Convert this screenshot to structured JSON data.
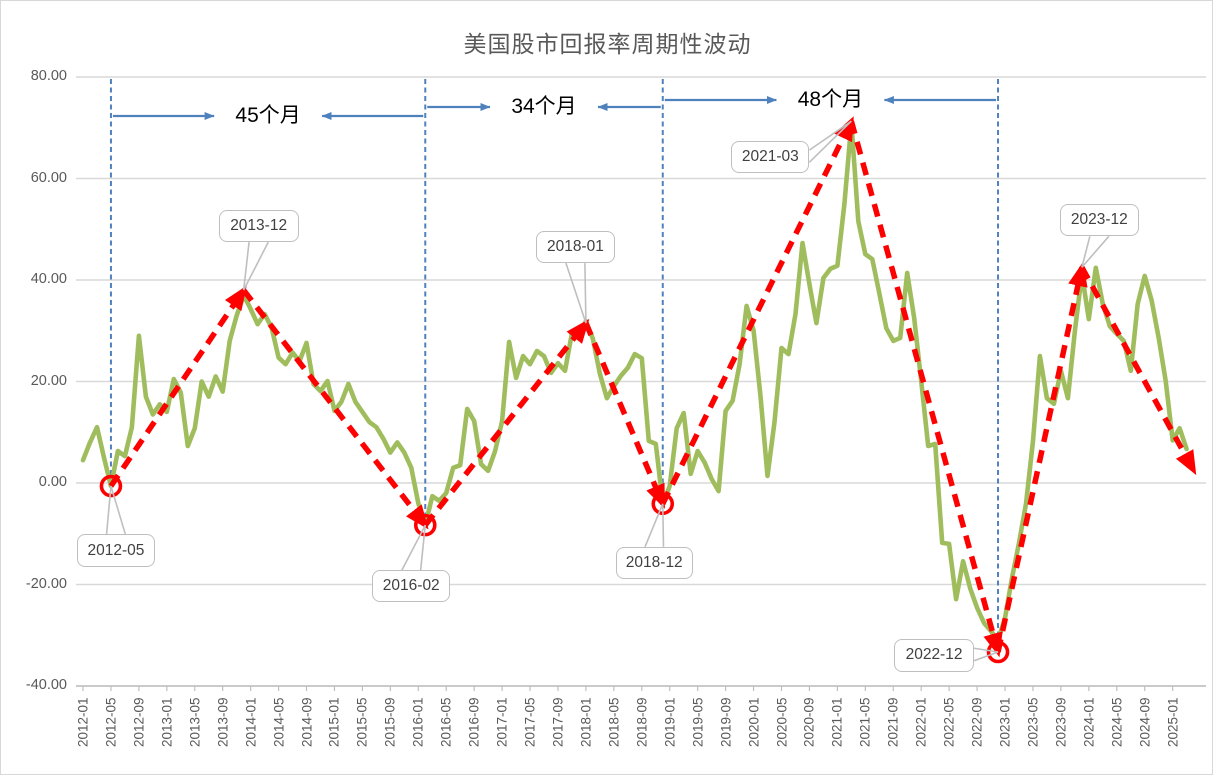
{
  "title": "美国股市回报率周期性波动",
  "axes": {
    "y_ticks": [
      "80.00",
      "60.00",
      "40.00",
      "20.00",
      "0.00",
      "-20.00",
      "-40.00"
    ],
    "y_min": -40,
    "y_max": 80,
    "y_step": 20,
    "x_tick_labels": [
      "2012-01",
      "2012-05",
      "2012-09",
      "2013-01",
      "2013-05",
      "2013-09",
      "2014-01",
      "2014-05",
      "2014-09",
      "2015-01",
      "2015-05",
      "2015-09",
      "2016-01",
      "2016-05",
      "2016-09",
      "2017-01",
      "2017-05",
      "2017-09",
      "2018-01",
      "2018-05",
      "2018-09",
      "2019-01",
      "2019-05",
      "2019-09",
      "2020-01",
      "2020-05",
      "2020-09",
      "2021-01",
      "2021-05",
      "2021-09",
      "2022-01",
      "2022-05",
      "2022-09",
      "2023-01",
      "2023-05",
      "2023-09",
      "2024-01",
      "2024-05",
      "2024-09",
      "2025-01"
    ],
    "x_tick_step_months": 4
  },
  "chart_data": {
    "type": "line",
    "title": "美国股市回报率周期性波动",
    "xlabel": "",
    "ylabel": "",
    "ylim": [
      -40,
      80
    ],
    "grid": "horizontal",
    "frequency": "monthly",
    "start_month": "2012-01",
    "end_month": "2025-03",
    "values": [
      4.5,
      8.0,
      11.0,
      5.0,
      -0.6,
      6.3,
      5.3,
      11.0,
      29.0,
      17.0,
      13.5,
      15.5,
      14.0,
      20.5,
      17.8,
      7.3,
      10.8,
      20.0,
      17.0,
      21.0,
      18.0,
      28.0,
      33.0,
      37.0,
      34.3,
      31.3,
      33.3,
      30.6,
      24.7,
      23.4,
      25.7,
      24.0,
      27.6,
      19.5,
      18.1,
      20.1,
      14.2,
      16.0,
      19.5,
      16.0,
      14.0,
      12.0,
      11.0,
      8.7,
      6.0,
      8.0,
      6.0,
      3.0,
      -4.0,
      -8.3,
      -2.6,
      -3.5,
      -2.0,
      3.0,
      3.5,
      14.6,
      12.2,
      3.7,
      2.4,
      6.3,
      12.2,
      27.8,
      20.7,
      25.0,
      23.4,
      26.0,
      25.0,
      21.7,
      23.6,
      22.1,
      29.6,
      28.6,
      31.9,
      28.4,
      21.5,
      16.7,
      19.1,
      21.1,
      22.7,
      25.4,
      24.6,
      8.3,
      7.7,
      -4.1,
      -0.6,
      10.8,
      13.8,
      1.8,
      6.3,
      4.0,
      0.8,
      -1.6,
      14.2,
      16.2,
      23.4,
      34.9,
      30.0,
      17.1,
      1.4,
      12.0,
      26.6,
      25.4,
      33.3,
      47.3,
      39.2,
      31.5,
      40.4,
      42.2,
      42.8,
      55.0,
      71.0,
      51.6,
      45.1,
      44.1,
      37.4,
      30.5,
      28.0,
      28.6,
      41.4,
      32.5,
      20.1,
      7.3,
      7.7,
      -11.8,
      -12.0,
      -22.9,
      -15.4,
      -20.7,
      -24.6,
      -27.6,
      -29.2,
      -31.0,
      -26.6,
      -18.7,
      -11.8,
      -4.1,
      8.3,
      25.0,
      16.7,
      15.6,
      22.1,
      16.7,
      30.0,
      41.2,
      32.3,
      42.4,
      35.3,
      30.9,
      29.4,
      28.0,
      22.1,
      35.3,
      40.8,
      35.9,
      28.6,
      20.1,
      8.4,
      10.8,
      6.7
    ]
  },
  "trend": {
    "points": [
      {
        "date": "2012-05",
        "value": -0.6
      },
      {
        "date": "2013-12",
        "value": 38.0
      },
      {
        "date": "2016-02",
        "value": -8.3
      },
      {
        "date": "2018-01",
        "value": 31.5
      },
      {
        "date": "2018-12",
        "value": -4.1
      },
      {
        "date": "2021-03",
        "value": 71.3
      },
      {
        "date": "2022-12",
        "value": -33.3
      },
      {
        "date": "2023-12",
        "value": 42.5
      },
      {
        "date": "2025-04",
        "value": 2.5
      }
    ],
    "circled_troughs": [
      "2012-05",
      "2016-02",
      "2018-12",
      "2022-12"
    ]
  },
  "cycle_spans": [
    {
      "label": "45个月",
      "from": "2012-05",
      "to": "2016-02"
    },
    {
      "label": "34个月",
      "from": "2016-02",
      "to": "2018-12"
    },
    {
      "label": "48个月",
      "from": "2018-12",
      "to": "2022-12"
    }
  ],
  "callouts": [
    {
      "label": "2012-05",
      "anchor_date": "2012-05",
      "anchor_value": -0.6
    },
    {
      "label": "2013-12",
      "anchor_date": "2013-12",
      "anchor_value": 38.0
    },
    {
      "label": "2016-02",
      "anchor_date": "2016-02",
      "anchor_value": -8.3
    },
    {
      "label": "2018-01",
      "anchor_date": "2018-01",
      "anchor_value": 31.5
    },
    {
      "label": "2018-12",
      "anchor_date": "2018-12",
      "anchor_value": -4.1
    },
    {
      "label": "2021-03",
      "anchor_date": "2021-03",
      "anchor_value": 71.3
    },
    {
      "label": "2022-12",
      "anchor_date": "2022-12",
      "anchor_value": -33.3
    },
    {
      "label": "2023-12",
      "anchor_date": "2023-12",
      "anchor_value": 42.5
    }
  ],
  "colors": {
    "series_line": "#a0bd5e",
    "trend_line": "#ff0000",
    "annotation_blue": "#4f81bd",
    "gridline": "#d9d9d9",
    "axis_line": "#bfbfbf",
    "axis_text": "#595959",
    "callout_border": "#bfbfbf",
    "callout_text": "#404040",
    "title_text": "#595959"
  }
}
